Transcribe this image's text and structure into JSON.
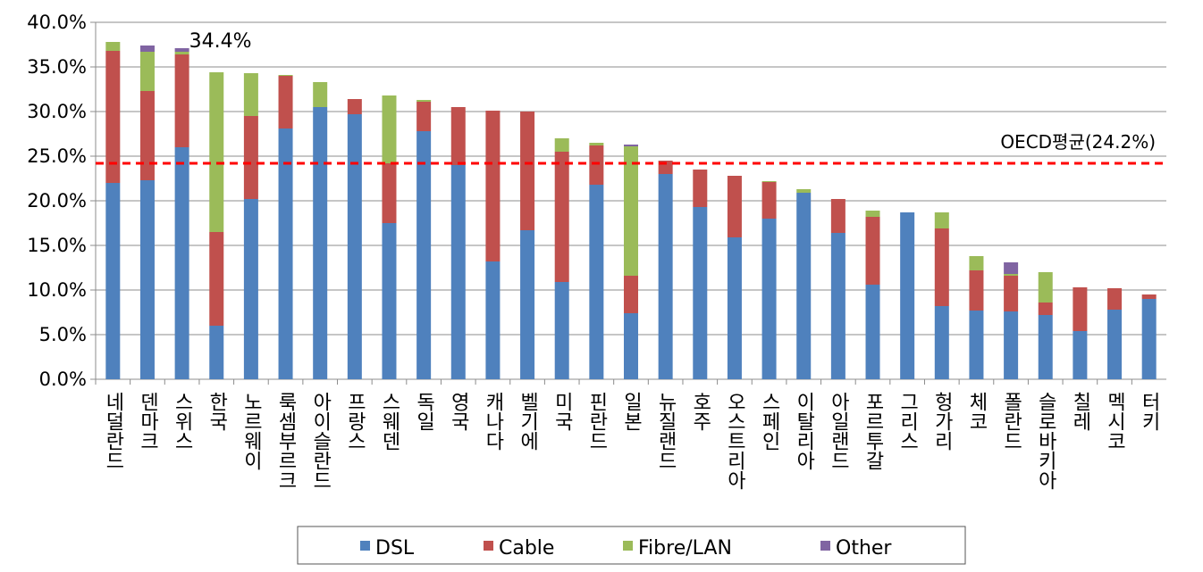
{
  "chart_data": {
    "type": "stacked-bar",
    "categories": [
      "네덜란드",
      "덴마크",
      "스위스",
      "한국",
      "노르웨이",
      "룩셈부르크",
      "아이슬란드",
      "프랑스",
      "스웨덴",
      "독일",
      "영국",
      "캐나다",
      "벨기에",
      "미국",
      "핀란드",
      "일본",
      "뉴질랜드",
      "호주",
      "오스트리아",
      "스페인",
      "이탈리아",
      "아일랜드",
      "포르투갈",
      "그리스",
      "헝가리",
      "체코",
      "폴란드",
      "슬로바키아",
      "칠레",
      "멕시코",
      "터키"
    ],
    "series": [
      {
        "name": "DSL",
        "color": "#4f81bd",
        "values": [
          22.0,
          22.3,
          26.0,
          6.0,
          20.2,
          28.1,
          30.5,
          29.7,
          17.5,
          27.8,
          24.0,
          13.2,
          16.7,
          10.9,
          21.8,
          7.4,
          23.0,
          19.3,
          15.9,
          18.0,
          20.9,
          16.4,
          10.6,
          18.7,
          8.2,
          7.7,
          7.6,
          7.2,
          5.4,
          7.8,
          9.0
        ]
      },
      {
        "name": "Cable",
        "color": "#c0504d",
        "values": [
          14.8,
          10.0,
          10.4,
          10.5,
          9.3,
          5.9,
          0,
          1.7,
          6.7,
          3.3,
          6.5,
          16.9,
          13.3,
          14.6,
          4.4,
          4.2,
          1.5,
          4.2,
          6.9,
          4.1,
          0,
          3.8,
          7.6,
          0,
          8.7,
          4.5,
          4.0,
          1.4,
          4.9,
          2.4,
          0.5
        ]
      },
      {
        "name": "Fibre/LAN",
        "color": "#9bbb59",
        "values": [
          1.0,
          4.4,
          0.3,
          17.9,
          4.8,
          0.1,
          2.8,
          0,
          7.6,
          0.2,
          0,
          0,
          0,
          1.5,
          0.3,
          14.5,
          0,
          0,
          0,
          0.1,
          0.4,
          0,
          0.7,
          0,
          1.8,
          1.6,
          0.2,
          3.4,
          0,
          0,
          0
        ]
      },
      {
        "name": "Other",
        "color": "#8064a2",
        "values": [
          0,
          0.7,
          0.4,
          0,
          0,
          0,
          0,
          0,
          0,
          0,
          0,
          0,
          0,
          0,
          0,
          0.2,
          0,
          0,
          0,
          0,
          0,
          0,
          0,
          0,
          0,
          0,
          1.3,
          0,
          0,
          0,
          0
        ]
      }
    ],
    "ylim": [
      0,
      40
    ],
    "yticks": [
      {
        "value": 0,
        "label": "0.0%"
      },
      {
        "value": 5,
        "label": "5.0%"
      },
      {
        "value": 10,
        "label": "10.0%"
      },
      {
        "value": 15,
        "label": "15.0%"
      },
      {
        "value": 20,
        "label": "20.0%"
      },
      {
        "value": 25,
        "label": "25.0%"
      },
      {
        "value": 30,
        "label": "30.0%"
      },
      {
        "value": 35,
        "label": "35.0%"
      },
      {
        "value": 40,
        "label": "40.0%"
      }
    ],
    "grid": true,
    "reference_line": {
      "value": 24.2,
      "label": "OECD평균(24.2%)",
      "color": "#ff0000"
    },
    "annotation": {
      "text": "34.4%",
      "category": 3,
      "value": 34.4
    }
  }
}
